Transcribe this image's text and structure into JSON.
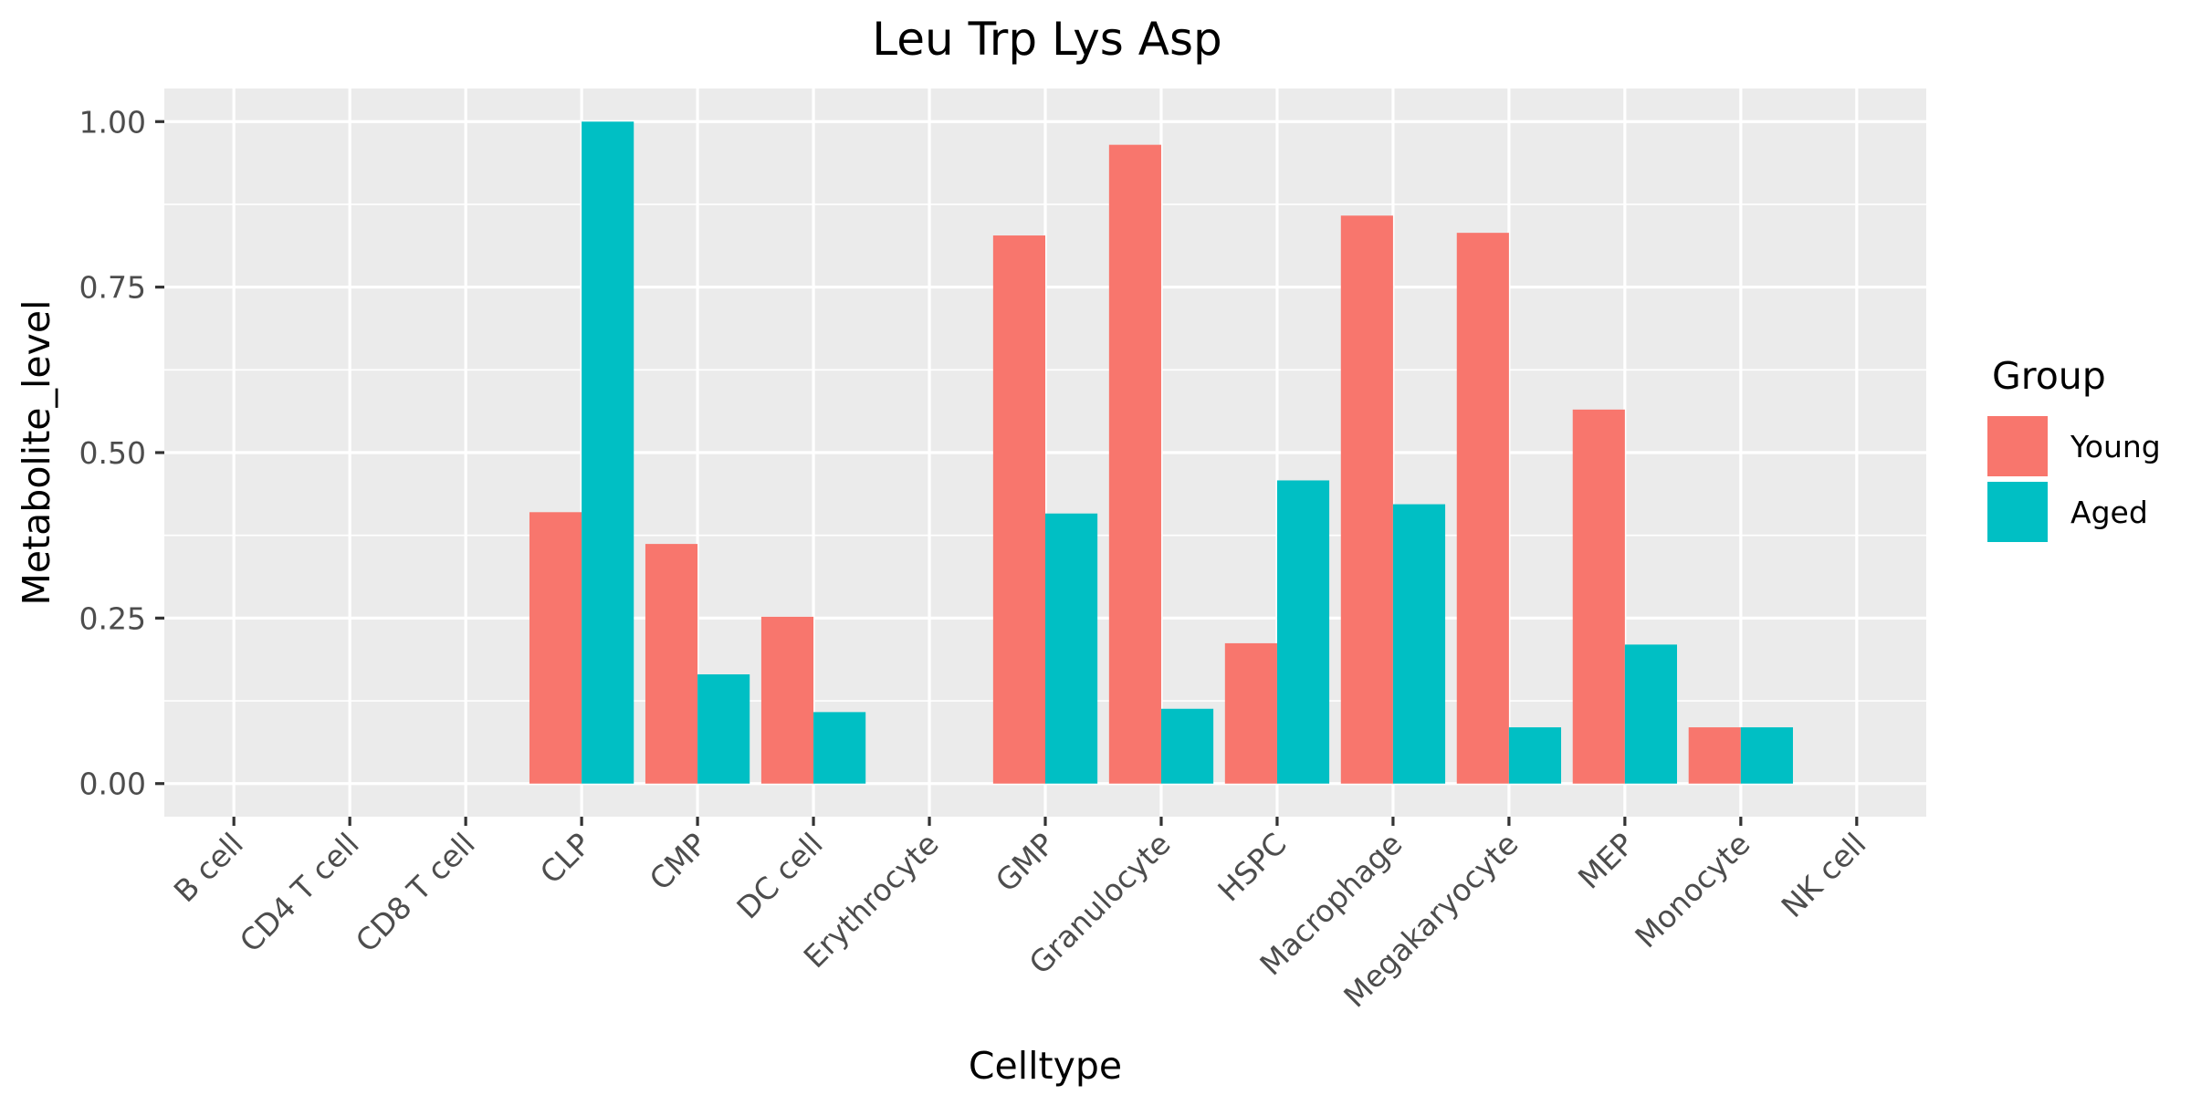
{
  "chart_data": {
    "type": "bar",
    "title": "Leu Trp Lys Asp",
    "xlabel": "Celltype",
    "ylabel": "Metabolite_level",
    "categories": [
      "B cell",
      "CD4 T cell",
      "CD8 T cell",
      "CLP",
      "CMP",
      "DC cell",
      "Erythrocyte",
      "GMP",
      "Granulocyte",
      "HSPC",
      "Macrophage",
      "Megakaryocyte",
      "MEP",
      "Monocyte",
      "NK cell"
    ],
    "series": [
      {
        "name": "Young",
        "color": "#F8766D",
        "values": [
          0,
          0,
          0,
          0.41,
          0.362,
          0.252,
          0,
          0.828,
          0.965,
          0.212,
          0.858,
          0.832,
          0.565,
          0.085,
          0
        ]
      },
      {
        "name": "Aged",
        "color": "#00BFC4",
        "values": [
          0,
          0,
          0,
          1.0,
          0.165,
          0.108,
          0,
          0.408,
          0.113,
          0.458,
          0.422,
          0.085,
          0.21,
          0.085,
          0
        ]
      }
    ],
    "ylim": [
      -0.05,
      1.05
    ],
    "yticks": [
      0,
      0.25,
      0.5,
      0.75,
      1.0
    ],
    "ytick_labels": [
      "0.00",
      "0.25",
      "0.50",
      "0.75",
      "1.00"
    ],
    "grid": true,
    "legend": {
      "title": "Group",
      "position": "right"
    },
    "panel_color": "#EBEBEB",
    "grid_color": "#FFFFFF"
  }
}
